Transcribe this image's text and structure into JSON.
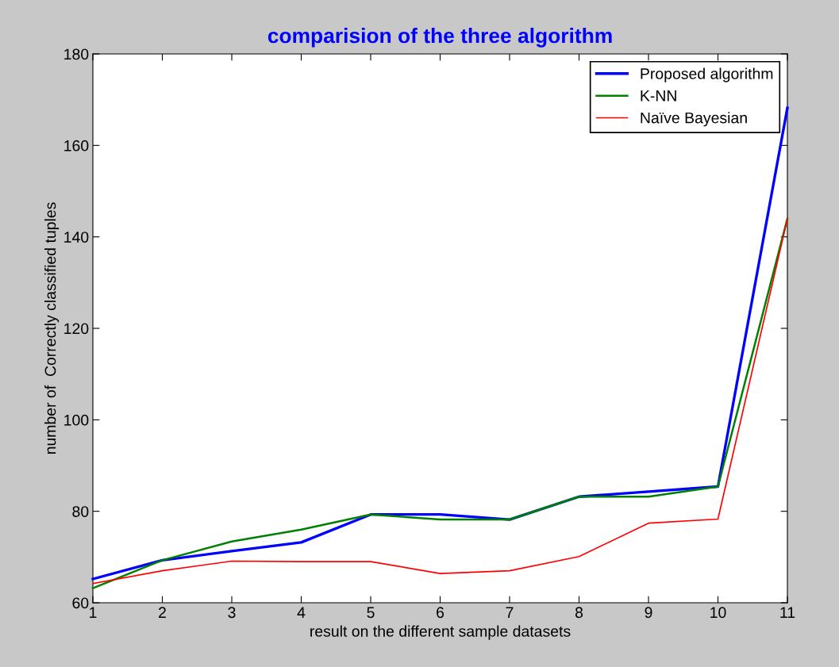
{
  "chart_data": {
    "type": "line",
    "title": "comparision of the three algorithm",
    "xlabel": "result on the different sample datasets",
    "ylabel": "number of  Correctly classified tuples",
    "x": [
      1,
      2,
      3,
      4,
      5,
      6,
      7,
      8,
      9,
      10,
      11
    ],
    "series": [
      {
        "name": "Proposed algorithm",
        "color": "#0000ff",
        "values": [
          65.2,
          69.3,
          71.3,
          73.2,
          79.3,
          79.3,
          78.2,
          83.2,
          84.3,
          85.4,
          168.2
        ]
      },
      {
        "name": "K-NN",
        "color": "#008000",
        "values": [
          63.2,
          69.3,
          73.4,
          76,
          79.3,
          78.2,
          78.2,
          83.2,
          83.2,
          85.4,
          144
        ]
      },
      {
        "name": "Naïve Bayesian",
        "color": "#ff0000",
        "values": [
          64.2,
          67,
          69.1,
          69,
          69,
          66.4,
          67,
          70.1,
          77.4,
          78.3,
          144
        ]
      }
    ],
    "xlim": [
      1,
      11
    ],
    "xticks": [
      1,
      2,
      3,
      4,
      5,
      6,
      7,
      8,
      9,
      10,
      11
    ],
    "ylim": [
      60,
      180
    ],
    "yticks": [
      60,
      80,
      100,
      120,
      140,
      160,
      180
    ],
    "legend": "top right",
    "grid": false,
    "marker": "none",
    "line_style": "solid"
  }
}
